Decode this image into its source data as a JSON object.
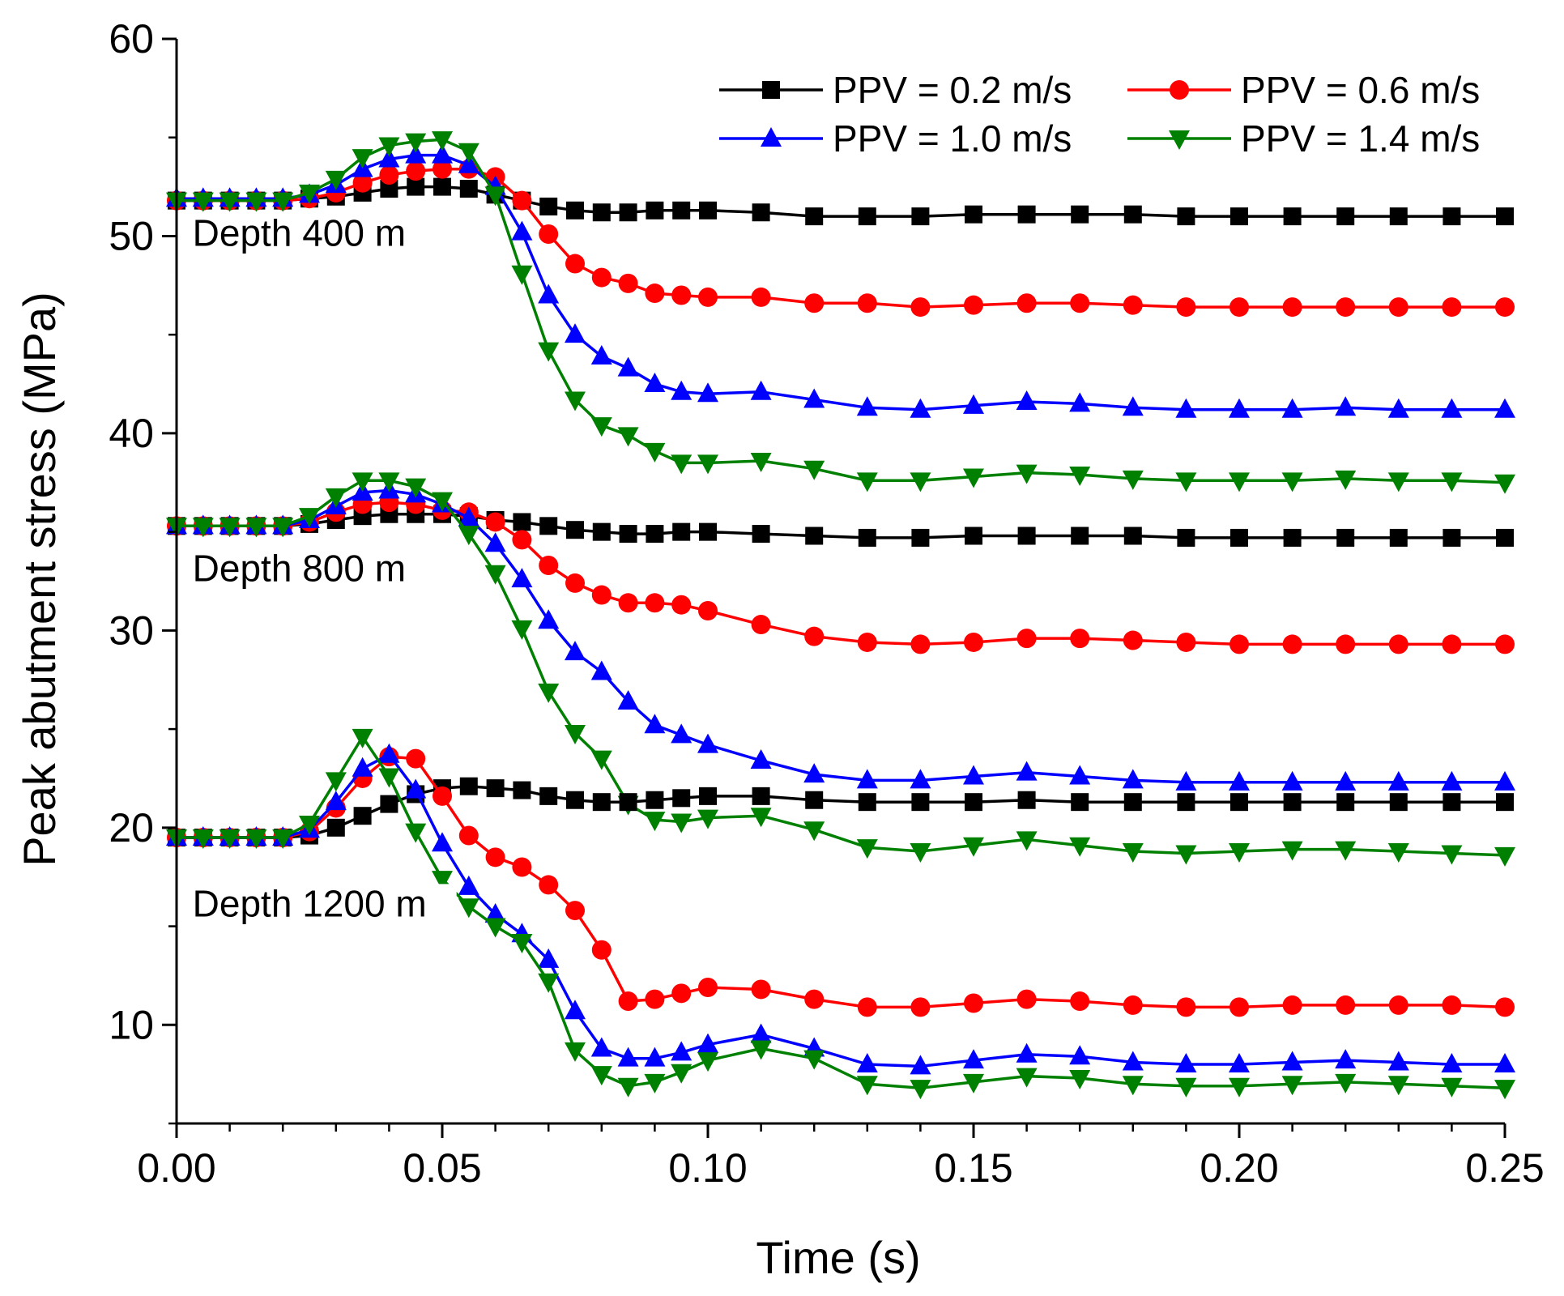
{
  "chart_data": {
    "type": "line",
    "title": "",
    "xlabel": "Time (s)",
    "ylabel": "Peak abutment stress (MPa)",
    "xlim": [
      0,
      0.25
    ],
    "ylim": [
      5,
      60
    ],
    "xticks": [
      0,
      0.05,
      0.1,
      0.15,
      0.2,
      0.25
    ],
    "xtick_labels": [
      "0.00",
      "0.05",
      "0.10",
      "0.15",
      "0.20",
      "0.25"
    ],
    "yticks": [
      10,
      20,
      30,
      40,
      50,
      60
    ],
    "ytick_labels": [
      "10",
      "20",
      "30",
      "40",
      "50",
      "60"
    ],
    "legend_position": "top-right",
    "annotations": [
      {
        "text": "Depth 400 m",
        "x": 0.003,
        "y": 49.5
      },
      {
        "text": "Depth 800 m",
        "x": 0.003,
        "y": 32.5
      },
      {
        "text": "Depth 1200 m",
        "x": 0.003,
        "y": 15.5
      }
    ],
    "series": [
      {
        "name": "PPV = 0.2 m/s",
        "color": "#000000",
        "marker": "square",
        "depth": "400 m",
        "x": [
          0,
          0.005,
          0.01,
          0.015,
          0.02,
          0.025,
          0.03,
          0.035,
          0.04,
          0.045,
          0.05,
          0.055,
          0.06,
          0.065,
          0.07,
          0.075,
          0.08,
          0.085,
          0.09,
          0.095,
          0.1,
          0.11,
          0.12,
          0.13,
          0.14,
          0.15,
          0.16,
          0.17,
          0.18,
          0.19,
          0.2,
          0.21,
          0.22,
          0.23,
          0.24,
          0.25
        ],
        "y": [
          51.8,
          51.8,
          51.8,
          51.8,
          51.8,
          51.9,
          52.0,
          52.2,
          52.4,
          52.5,
          52.5,
          52.4,
          52.1,
          51.8,
          51.5,
          51.3,
          51.2,
          51.2,
          51.3,
          51.3,
          51.3,
          51.2,
          51.0,
          51.0,
          51.0,
          51.1,
          51.1,
          51.1,
          51.1,
          51.0,
          51.0,
          51.0,
          51.0,
          51.0,
          51.0,
          51.0
        ]
      },
      {
        "name": "PPV = 0.6 m/s",
        "color": "#ff0000",
        "marker": "circle",
        "depth": "400 m",
        "x": [
          0,
          0.005,
          0.01,
          0.015,
          0.02,
          0.025,
          0.03,
          0.035,
          0.04,
          0.045,
          0.05,
          0.055,
          0.06,
          0.065,
          0.07,
          0.075,
          0.08,
          0.085,
          0.09,
          0.095,
          0.1,
          0.11,
          0.12,
          0.13,
          0.14,
          0.15,
          0.16,
          0.17,
          0.18,
          0.19,
          0.2,
          0.21,
          0.22,
          0.23,
          0.24,
          0.25
        ],
        "y": [
          51.8,
          51.8,
          51.8,
          51.8,
          51.8,
          51.9,
          52.2,
          52.7,
          53.1,
          53.3,
          53.4,
          53.4,
          53.0,
          51.8,
          50.1,
          48.6,
          47.9,
          47.6,
          47.1,
          47.0,
          46.9,
          46.9,
          46.6,
          46.6,
          46.4,
          46.5,
          46.6,
          46.6,
          46.5,
          46.4,
          46.4,
          46.4,
          46.4,
          46.4,
          46.4,
          46.4
        ]
      },
      {
        "name": "PPV = 1.0 m/s",
        "color": "#0000ff",
        "marker": "triangle-up",
        "depth": "400 m",
        "x": [
          0,
          0.005,
          0.01,
          0.015,
          0.02,
          0.025,
          0.03,
          0.035,
          0.04,
          0.045,
          0.05,
          0.055,
          0.06,
          0.065,
          0.07,
          0.075,
          0.08,
          0.085,
          0.09,
          0.095,
          0.1,
          0.11,
          0.12,
          0.13,
          0.14,
          0.15,
          0.16,
          0.17,
          0.18,
          0.19,
          0.2,
          0.21,
          0.22,
          0.23,
          0.24,
          0.25
        ],
        "y": [
          51.9,
          51.9,
          51.9,
          51.9,
          51.9,
          52.1,
          52.6,
          53.4,
          53.9,
          54.1,
          54.1,
          53.6,
          52.5,
          50.2,
          47.0,
          45.0,
          43.9,
          43.3,
          42.5,
          42.1,
          42.0,
          42.1,
          41.7,
          41.3,
          41.2,
          41.4,
          41.6,
          41.5,
          41.3,
          41.2,
          41.2,
          41.2,
          41.3,
          41.2,
          41.2,
          41.2
        ]
      },
      {
        "name": "PPV = 1.4 m/s",
        "color": "#008000",
        "marker": "triangle-down",
        "depth": "400 m",
        "x": [
          0,
          0.005,
          0.01,
          0.015,
          0.02,
          0.025,
          0.03,
          0.035,
          0.04,
          0.045,
          0.05,
          0.055,
          0.06,
          0.065,
          0.07,
          0.075,
          0.08,
          0.085,
          0.09,
          0.095,
          0.1,
          0.11,
          0.12,
          0.13,
          0.14,
          0.15,
          0.16,
          0.17,
          0.18,
          0.19,
          0.2,
          0.21,
          0.22,
          0.23,
          0.24,
          0.25
        ],
        "y": [
          51.8,
          51.8,
          51.8,
          51.8,
          51.8,
          52.2,
          52.9,
          54.0,
          54.6,
          54.8,
          54.9,
          54.3,
          52.1,
          48.1,
          44.2,
          41.7,
          40.4,
          39.9,
          39.1,
          38.5,
          38.5,
          38.6,
          38.2,
          37.6,
          37.6,
          37.8,
          38.0,
          37.9,
          37.7,
          37.6,
          37.6,
          37.6,
          37.7,
          37.6,
          37.6,
          37.5
        ]
      },
      {
        "name": "PPV = 0.2 m/s",
        "color": "#000000",
        "marker": "square",
        "depth": "800 m",
        "x": [
          0,
          0.005,
          0.01,
          0.015,
          0.02,
          0.025,
          0.03,
          0.035,
          0.04,
          0.045,
          0.05,
          0.055,
          0.06,
          0.065,
          0.07,
          0.075,
          0.08,
          0.085,
          0.09,
          0.095,
          0.1,
          0.11,
          0.12,
          0.13,
          0.14,
          0.15,
          0.16,
          0.17,
          0.18,
          0.19,
          0.2,
          0.21,
          0.22,
          0.23,
          0.24,
          0.25
        ],
        "y": [
          35.3,
          35.3,
          35.3,
          35.3,
          35.3,
          35.4,
          35.6,
          35.8,
          35.9,
          35.9,
          35.9,
          35.8,
          35.6,
          35.5,
          35.3,
          35.1,
          35.0,
          34.9,
          34.9,
          35.0,
          35.0,
          34.9,
          34.8,
          34.7,
          34.7,
          34.8,
          34.8,
          34.8,
          34.8,
          34.7,
          34.7,
          34.7,
          34.7,
          34.7,
          34.7,
          34.7
        ]
      },
      {
        "name": "PPV = 0.6 m/s",
        "color": "#ff0000",
        "marker": "circle",
        "depth": "800 m",
        "x": [
          0,
          0.005,
          0.01,
          0.015,
          0.02,
          0.025,
          0.03,
          0.035,
          0.04,
          0.045,
          0.05,
          0.055,
          0.06,
          0.065,
          0.07,
          0.075,
          0.08,
          0.085,
          0.09,
          0.095,
          0.1,
          0.11,
          0.12,
          0.13,
          0.14,
          0.15,
          0.16,
          0.17,
          0.18,
          0.19,
          0.2,
          0.21,
          0.22,
          0.23,
          0.24,
          0.25
        ],
        "y": [
          35.3,
          35.3,
          35.3,
          35.3,
          35.3,
          35.5,
          36.0,
          36.4,
          36.5,
          36.4,
          36.1,
          36.0,
          35.5,
          34.6,
          33.3,
          32.4,
          31.8,
          31.4,
          31.4,
          31.3,
          31.0,
          30.3,
          29.7,
          29.4,
          29.3,
          29.4,
          29.6,
          29.6,
          29.5,
          29.4,
          29.3,
          29.3,
          29.3,
          29.3,
          29.3,
          29.3
        ]
      },
      {
        "name": "PPV = 1.0 m/s",
        "color": "#0000ff",
        "marker": "triangle-up",
        "depth": "800 m",
        "x": [
          0,
          0.005,
          0.01,
          0.015,
          0.02,
          0.025,
          0.03,
          0.035,
          0.04,
          0.045,
          0.05,
          0.055,
          0.06,
          0.065,
          0.07,
          0.075,
          0.08,
          0.085,
          0.09,
          0.095,
          0.1,
          0.11,
          0.12,
          0.13,
          0.14,
          0.15,
          0.16,
          0.17,
          0.18,
          0.19,
          0.2,
          0.21,
          0.22,
          0.23,
          0.24,
          0.25
        ],
        "y": [
          35.3,
          35.3,
          35.3,
          35.3,
          35.3,
          35.6,
          36.3,
          37.0,
          37.1,
          36.9,
          36.4,
          35.7,
          34.4,
          32.6,
          30.5,
          28.9,
          27.9,
          26.4,
          25.2,
          24.7,
          24.2,
          23.4,
          22.7,
          22.4,
          22.4,
          22.6,
          22.8,
          22.6,
          22.4,
          22.3,
          22.3,
          22.3,
          22.3,
          22.3,
          22.3,
          22.3
        ]
      },
      {
        "name": "PPV = 1.4 m/s",
        "color": "#008000",
        "marker": "triangle-down",
        "depth": "800 m",
        "x": [
          0,
          0.005,
          0.01,
          0.015,
          0.02,
          0.025,
          0.03,
          0.035,
          0.04,
          0.045,
          0.05,
          0.055,
          0.06,
          0.065,
          0.07,
          0.075,
          0.08,
          0.085,
          0.09,
          0.095,
          0.1,
          0.11,
          0.12,
          0.13,
          0.14,
          0.15,
          0.16,
          0.17,
          0.18,
          0.19,
          0.2,
          0.21,
          0.22,
          0.23,
          0.24,
          0.25
        ],
        "y": [
          35.3,
          35.3,
          35.3,
          35.3,
          35.3,
          35.8,
          36.8,
          37.6,
          37.6,
          37.3,
          36.6,
          34.9,
          32.9,
          30.1,
          26.9,
          24.8,
          23.5,
          21.2,
          20.4,
          20.3,
          20.5,
          20.6,
          19.9,
          19.0,
          18.8,
          19.1,
          19.4,
          19.1,
          18.8,
          18.7,
          18.8,
          18.9,
          18.9,
          18.8,
          18.7,
          18.6
        ]
      },
      {
        "name": "PPV = 0.2 m/s",
        "color": "#000000",
        "marker": "square",
        "depth": "1200 m",
        "x": [
          0,
          0.005,
          0.01,
          0.015,
          0.02,
          0.025,
          0.03,
          0.035,
          0.04,
          0.045,
          0.05,
          0.055,
          0.06,
          0.065,
          0.07,
          0.075,
          0.08,
          0.085,
          0.09,
          0.095,
          0.1,
          0.11,
          0.12,
          0.13,
          0.14,
          0.15,
          0.16,
          0.17,
          0.18,
          0.19,
          0.2,
          0.21,
          0.22,
          0.23,
          0.24,
          0.25
        ],
        "y": [
          19.5,
          19.5,
          19.5,
          19.5,
          19.5,
          19.6,
          20.0,
          20.6,
          21.2,
          21.7,
          22.0,
          22.1,
          22.0,
          21.9,
          21.6,
          21.4,
          21.3,
          21.3,
          21.4,
          21.5,
          21.6,
          21.6,
          21.4,
          21.3,
          21.3,
          21.3,
          21.4,
          21.3,
          21.3,
          21.3,
          21.3,
          21.3,
          21.3,
          21.3,
          21.3,
          21.3
        ]
      },
      {
        "name": "PPV = 0.6 m/s",
        "color": "#ff0000",
        "marker": "circle",
        "depth": "1200 m",
        "x": [
          0,
          0.005,
          0.01,
          0.015,
          0.02,
          0.025,
          0.03,
          0.035,
          0.04,
          0.045,
          0.05,
          0.055,
          0.06,
          0.065,
          0.07,
          0.075,
          0.08,
          0.085,
          0.09,
          0.095,
          0.1,
          0.11,
          0.12,
          0.13,
          0.14,
          0.15,
          0.16,
          0.17,
          0.18,
          0.19,
          0.2,
          0.21,
          0.22,
          0.23,
          0.24,
          0.25
        ],
        "y": [
          19.5,
          19.5,
          19.5,
          19.5,
          19.5,
          19.8,
          21.0,
          22.5,
          23.6,
          23.5,
          21.6,
          19.6,
          18.5,
          18.0,
          17.1,
          15.8,
          13.8,
          11.2,
          11.3,
          11.6,
          11.9,
          11.8,
          11.3,
          10.9,
          10.9,
          11.1,
          11.3,
          11.2,
          11.0,
          10.9,
          10.9,
          11.0,
          11.0,
          11.0,
          11.0,
          10.9
        ]
      },
      {
        "name": "PPV = 1.0 m/s",
        "color": "#0000ff",
        "marker": "triangle-up",
        "depth": "1200 m",
        "x": [
          0,
          0.005,
          0.01,
          0.015,
          0.02,
          0.025,
          0.03,
          0.035,
          0.04,
          0.045,
          0.05,
          0.055,
          0.06,
          0.065,
          0.07,
          0.075,
          0.08,
          0.085,
          0.09,
          0.095,
          0.1,
          0.11,
          0.12,
          0.13,
          0.14,
          0.15,
          0.16,
          0.17,
          0.18,
          0.19,
          0.2,
          0.21,
          0.22,
          0.23,
          0.24,
          0.25
        ],
        "y": [
          19.5,
          19.5,
          19.5,
          19.5,
          19.5,
          19.9,
          21.3,
          23.0,
          23.7,
          21.9,
          19.2,
          17.0,
          15.6,
          14.6,
          13.3,
          10.7,
          8.8,
          8.3,
          8.3,
          8.6,
          9.0,
          9.5,
          8.8,
          8.0,
          7.9,
          8.2,
          8.5,
          8.4,
          8.1,
          8.0,
          8.0,
          8.1,
          8.2,
          8.1,
          8.0,
          8.0
        ]
      },
      {
        "name": "PPV = 1.4 m/s",
        "color": "#008000",
        "marker": "triangle-down",
        "depth": "1200 m",
        "x": [
          0,
          0.005,
          0.01,
          0.015,
          0.02,
          0.025,
          0.03,
          0.035,
          0.04,
          0.045,
          0.05,
          0.055,
          0.06,
          0.065,
          0.07,
          0.075,
          0.08,
          0.085,
          0.09,
          0.095,
          0.1,
          0.11,
          0.12,
          0.13,
          0.14,
          0.15,
          0.16,
          0.17,
          0.18,
          0.19,
          0.2,
          0.21,
          0.22,
          0.23,
          0.24,
          0.25
        ],
        "y": [
          19.5,
          19.5,
          19.5,
          19.5,
          19.5,
          20.2,
          22.4,
          24.6,
          22.6,
          19.8,
          17.4,
          16.0,
          15.0,
          14.2,
          12.2,
          8.7,
          7.5,
          6.9,
          7.1,
          7.6,
          8.2,
          8.8,
          8.3,
          7.0,
          6.8,
          7.1,
          7.4,
          7.3,
          7.0,
          6.9,
          6.9,
          7.0,
          7.1,
          7.0,
          6.9,
          6.8
        ]
      }
    ],
    "legend": [
      {
        "label": "PPV = 0.2 m/s",
        "color": "#000000",
        "marker": "square"
      },
      {
        "label": "PPV = 0.6 m/s",
        "color": "#ff0000",
        "marker": "circle"
      },
      {
        "label": "PPV = 1.0 m/s",
        "color": "#0000ff",
        "marker": "triangle-up"
      },
      {
        "label": "PPV = 1.4 m/s",
        "color": "#008000",
        "marker": "triangle-down"
      }
    ]
  }
}
